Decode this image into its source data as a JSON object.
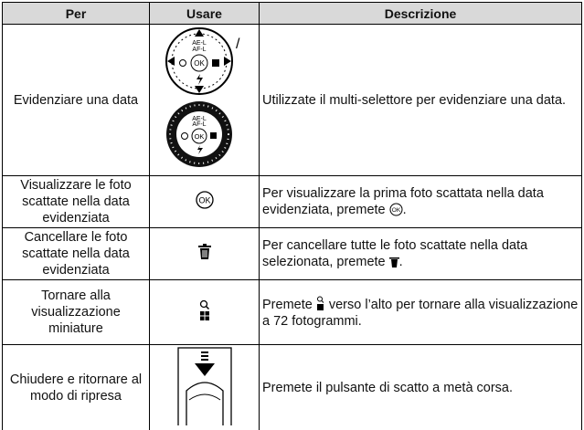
{
  "table": {
    "header": [
      "Per",
      "Usare",
      "Descrizione"
    ],
    "rows": [
      {
        "per": "Evidenziare una data",
        "description": [
          "Utilizzate il multi-selettore per evidenziare una data."
        ]
      },
      {
        "per": "Visualizzare le foto scattate nella data evidenziata",
        "description": [
          "Per visualizzare la prima foto scattata nella data evidenziata, premete",
          "."
        ]
      },
      {
        "per": "Cancellare le foto scattate nella data evidenziata",
        "description": [
          "Per cancellare tutte le foto scattate nella data selezionata, premete",
          "."
        ]
      },
      {
        "per": "Tornare alla visualizzazione miniature",
        "description": [
          "Premete",
          " verso l’alto per tornare alla visualizzazione a 72 fotogrammi."
        ]
      },
      {
        "per": "Chiudere e ritornare al modo di ripresa",
        "description": [
          "Premete il pulsante di scatto a metà corsa."
        ]
      }
    ]
  },
  "icons": {
    "ae_l": "AE-L",
    "af_l": "AF-L",
    "ok": "OK",
    "separator": "/"
  }
}
